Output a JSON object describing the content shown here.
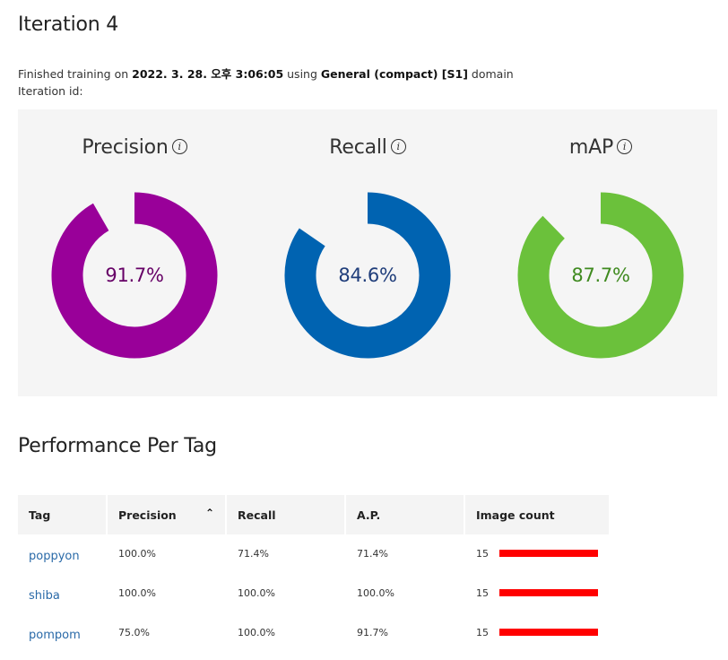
{
  "header": {
    "title": "Iteration 4",
    "meta_prefix": "Finished training on ",
    "meta_date": "2022. 3. 28. 오후 3:06:05",
    "meta_using": " using ",
    "meta_domain": "General (compact) [S1]",
    "meta_suffix": " domain",
    "iteration_id_label": "Iteration id:"
  },
  "metrics": [
    {
      "label": "Precision",
      "value_text": "91.7%",
      "value": 91.7,
      "color": "#990099",
      "text_color": "#660066"
    },
    {
      "label": "Recall",
      "value_text": "84.6%",
      "value": 84.6,
      "color": "#0063b1",
      "text_color": "#1f3d7a"
    },
    {
      "label": "mAP",
      "value_text": "87.7%",
      "value": 87.7,
      "color": "#6bc13b",
      "text_color": "#3f8a1f"
    }
  ],
  "info_icon_glyph": "i",
  "section_title": "Performance Per Tag",
  "table": {
    "headers": [
      "Tag",
      "Precision",
      "Recall",
      "A.P.",
      "Image count"
    ],
    "sort_icon_glyph": "⌃",
    "rows": [
      {
        "tag": "poppyon",
        "precision": "100.0%",
        "recall": "71.4%",
        "ap": "71.4%",
        "count": "15"
      },
      {
        "tag": "shiba",
        "precision": "100.0%",
        "recall": "100.0%",
        "ap": "100.0%",
        "count": "15"
      },
      {
        "tag": "pompom",
        "precision": "75.0%",
        "recall": "100.0%",
        "ap": "91.7%",
        "count": "15"
      }
    ],
    "bar_color": "#ff0000"
  }
}
